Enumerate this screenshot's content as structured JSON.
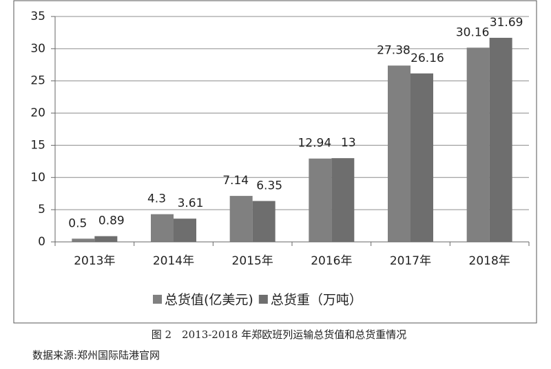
{
  "chart_data": {
    "type": "bar",
    "categories": [
      "2013年",
      "2014年",
      "2015年",
      "2016年",
      "2017年",
      "2018年"
    ],
    "series": [
      {
        "name": "总货值(亿美元)",
        "color": "#808080",
        "values": [
          0.5,
          4.3,
          7.14,
          12.94,
          27.38,
          30.16
        ]
      },
      {
        "name": "总货重（万吨）",
        "color": "#6e6e6e",
        "values": [
          0.89,
          3.61,
          6.35,
          13,
          26.16,
          31.69
        ]
      }
    ],
    "ylim": [
      0,
      35
    ],
    "yticks": [
      0,
      5,
      10,
      15,
      20,
      25,
      30,
      35
    ],
    "grid": true,
    "legend": "bottom"
  },
  "caption": "图 2　2013-2018 年郑欧班列运输总货值和总货重情况",
  "source": "数据来源:郑州国际陆港官网"
}
